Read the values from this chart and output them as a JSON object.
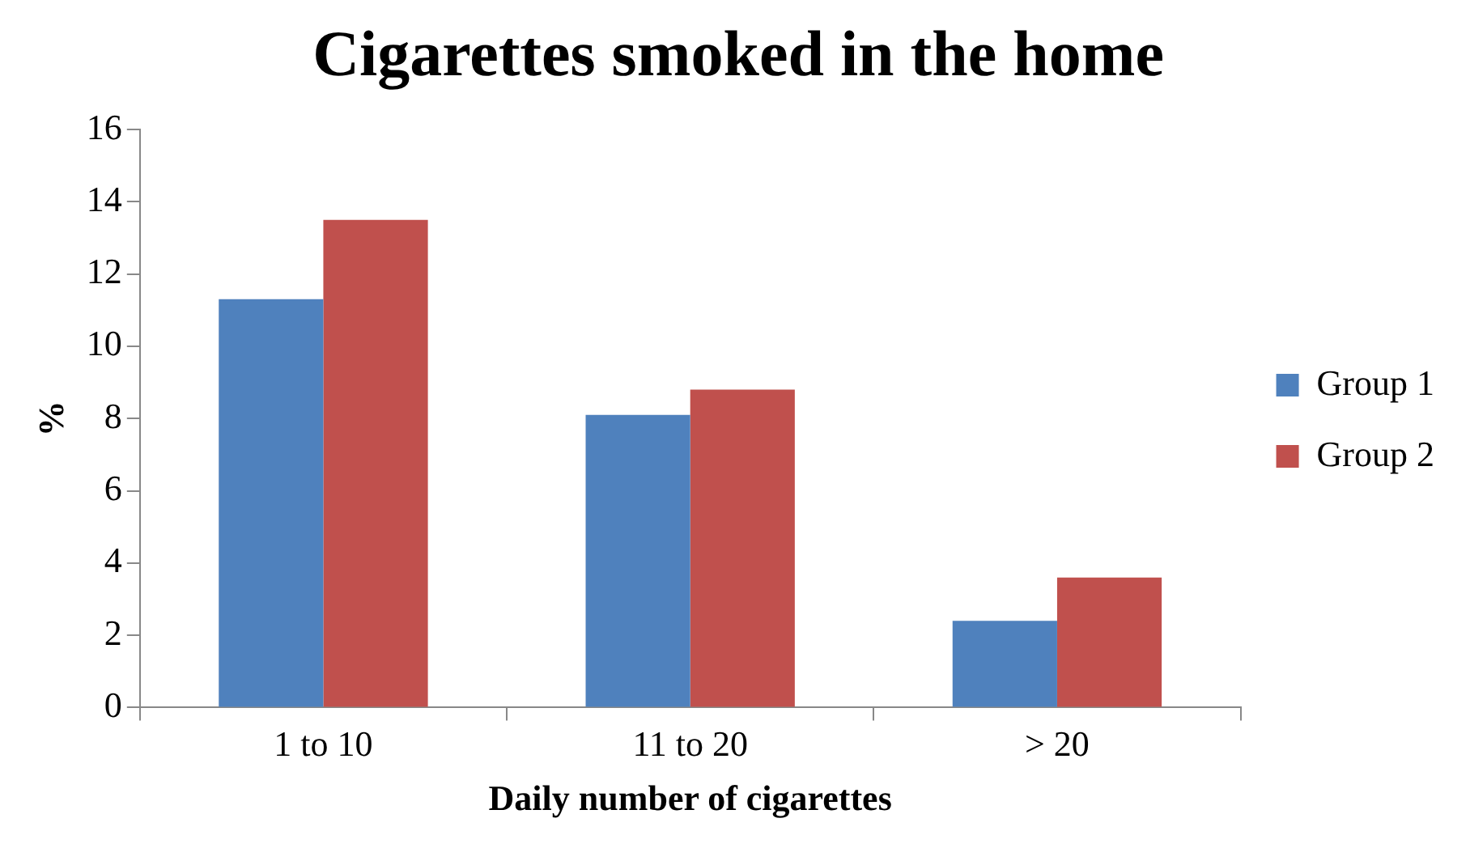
{
  "chart_data": {
    "type": "bar",
    "title": "Cigarettes smoked in the home",
    "xlabel": "Daily number of cigarettes",
    "ylabel": "%",
    "categories": [
      "1 to 10",
      "11 to 20",
      "> 20"
    ],
    "series": [
      {
        "name": "Group 1",
        "color": "#4f81bd",
        "values": [
          11.3,
          8.1,
          2.4
        ]
      },
      {
        "name": "Group 2",
        "color": "#c0504d",
        "values": [
          13.5,
          8.8,
          3.6
        ]
      }
    ],
    "ylim": [
      0,
      16
    ],
    "yticks": [
      0,
      2,
      4,
      6,
      8,
      10,
      12,
      14,
      16
    ],
    "grid": false,
    "legend": "right"
  }
}
